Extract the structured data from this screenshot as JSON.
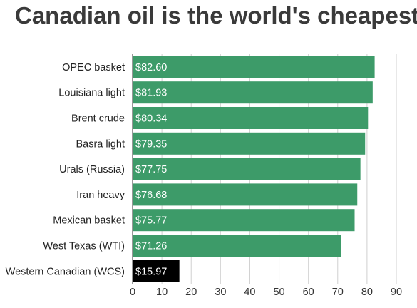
{
  "chart_data": {
    "type": "bar",
    "orientation": "horizontal",
    "title": "Canadian oil is the world's cheapest",
    "xlabel": "",
    "ylabel": "",
    "categories": [
      "OPEC basket",
      "Louisiana light",
      "Brent crude",
      "Basra light",
      "Urals (Russia)",
      "Iran heavy",
      "Mexican basket",
      "West Texas (WTI)",
      "Western Canadian (WCS)"
    ],
    "values": [
      82.6,
      81.93,
      80.34,
      79.35,
      77.75,
      76.68,
      75.77,
      71.26,
      15.97
    ],
    "value_labels": [
      "$82.60",
      "$81.93",
      "$80.34",
      "$79.35",
      "$77.75",
      "$76.68",
      "$75.77",
      "$71.26",
      "$15.97"
    ],
    "xlim": [
      0,
      90
    ],
    "xticks": [
      0,
      10,
      20,
      30,
      40,
      50,
      60,
      70,
      80,
      90
    ],
    "grid": true,
    "colors": {
      "bar": "#3d9b69",
      "highlight": "#000000"
    },
    "highlight_index": 8
  }
}
